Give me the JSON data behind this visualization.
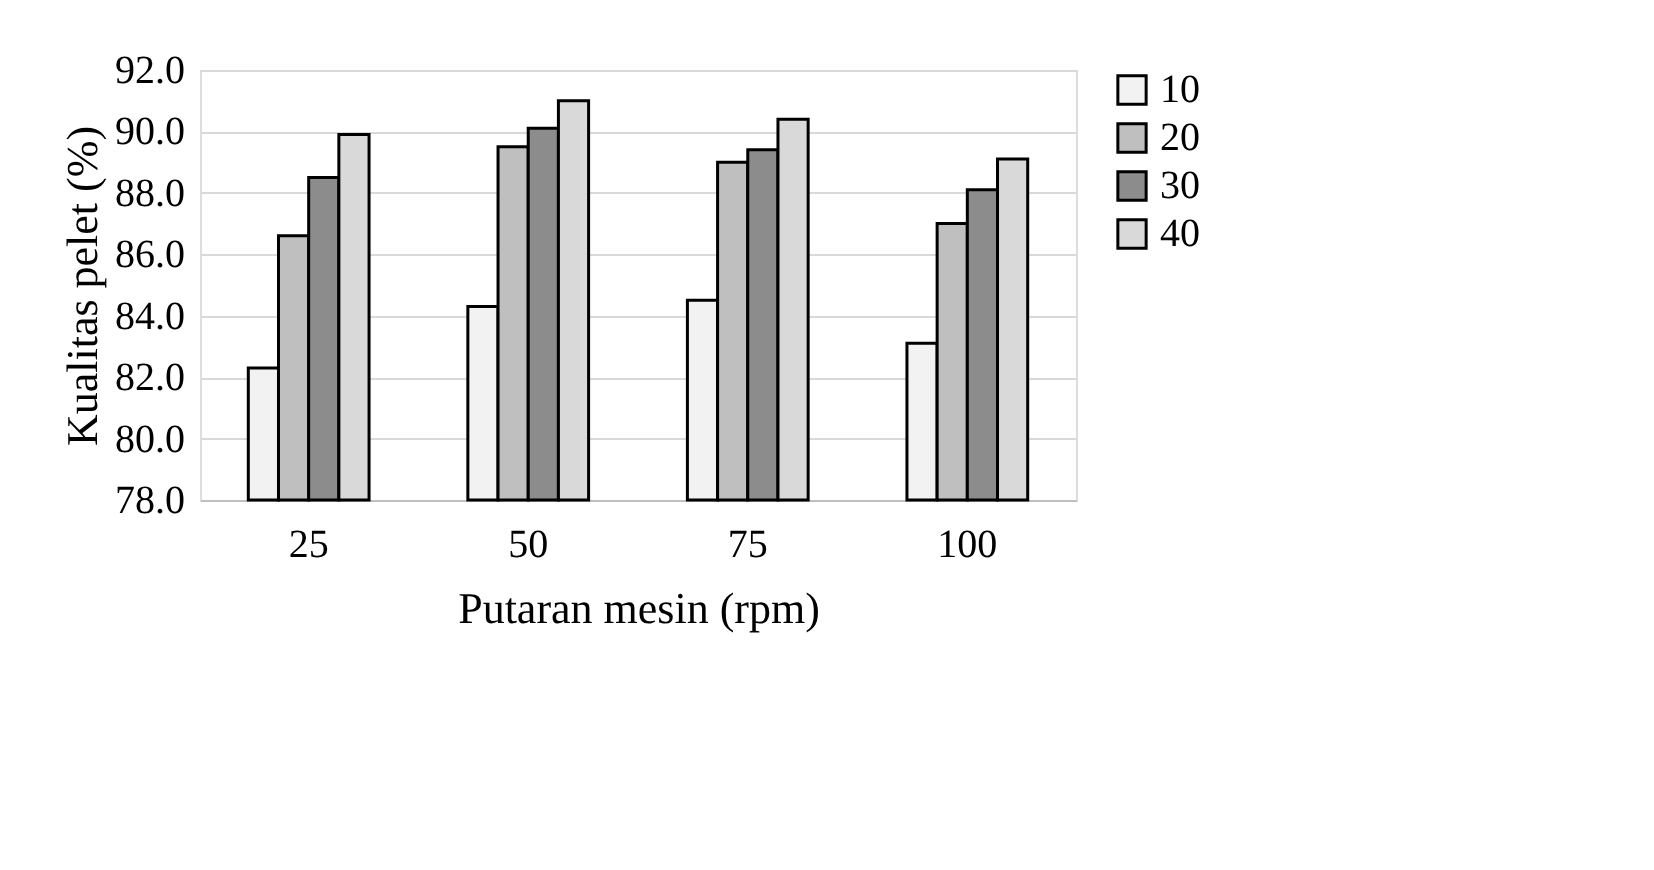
{
  "chart_data": {
    "type": "bar",
    "xlabel": "Putaran mesin (rpm)",
    "ylabel": "Kualitas pelet (%)",
    "categories": [
      "25",
      "50",
      "75",
      "100"
    ],
    "series": [
      {
        "name": "10",
        "color": "#f2f2f2",
        "values": [
          82.3,
          84.3,
          84.5,
          83.1
        ]
      },
      {
        "name": "20",
        "color": "#bfbfbf",
        "values": [
          86.6,
          89.5,
          89.0,
          87.0
        ]
      },
      {
        "name": "30",
        "color": "#8c8c8c",
        "values": [
          88.5,
          90.1,
          89.4,
          88.1
        ]
      },
      {
        "name": "40",
        "color": "#d9d9d9",
        "values": [
          89.9,
          91.0,
          90.4,
          89.1
        ]
      }
    ],
    "ylim": [
      78,
      92
    ],
    "yticks": [
      {
        "value": 78,
        "label": "78.0"
      },
      {
        "value": 80,
        "label": "80.0"
      },
      {
        "value": 82,
        "label": "82.0"
      },
      {
        "value": 84,
        "label": "84.0"
      },
      {
        "value": 86,
        "label": "86.0"
      },
      {
        "value": 88,
        "label": "88.0"
      },
      {
        "value": 90,
        "label": "90.0"
      },
      {
        "value": 92,
        "label": "92.0"
      }
    ],
    "grid": "y",
    "legend": "right"
  }
}
